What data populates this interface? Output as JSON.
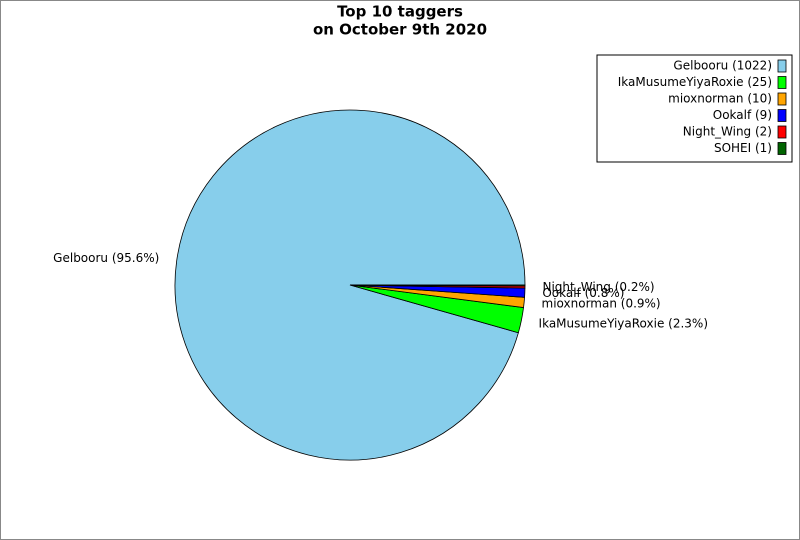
{
  "chart_data": {
    "type": "pie",
    "title": [
      "Top 10 taggers",
      "on October 9th 2020"
    ],
    "categories": [
      "Gelbooru",
      "IkaMusumeYiyaRoxie",
      "mioxnorman",
      "Ookalf",
      "Night_Wing",
      "SOHEI"
    ],
    "values": [
      1022,
      25,
      10,
      9,
      2,
      1
    ],
    "value_labels": [
      "Gelbooru (95.6%)",
      "IkaMusumeYiyaRoxie (2.3%)",
      "mioxnorman (0.9%)",
      "Ookalf (0.8%)",
      "Night_Wing (0.2%)",
      null
    ],
    "legend_labels": [
      "Gelbooru (1022)",
      "IkaMusumeYiyaRoxie (25)",
      "mioxnorman (10)",
      "Ookalf (9)",
      "Night_Wing (2)",
      "SOHEI (1)"
    ],
    "colors": [
      "#87ceeb",
      "#00ff00",
      "#ffa500",
      "#0000ff",
      "#ff0000",
      "#006400"
    ],
    "legend": "upper right"
  }
}
